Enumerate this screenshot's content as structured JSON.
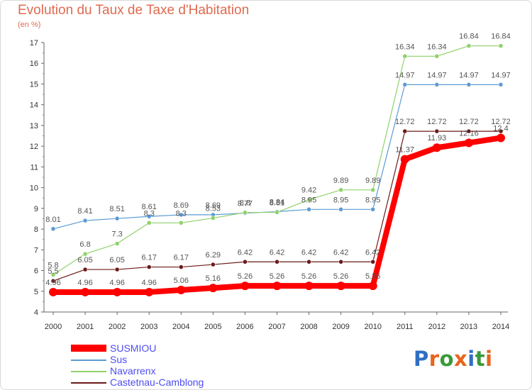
{
  "header": {
    "title": "Evolution du Taux de Taxe d'Habitation",
    "unit": "(en %)"
  },
  "chart_data": {
    "type": "line",
    "title": "Evolution du Taux de Taxe d'Habitation",
    "ylabel": "(en %)",
    "x": [
      "2000",
      "2001",
      "2002",
      "2003",
      "2004",
      "2005",
      "2006",
      "2007",
      "2008",
      "2009",
      "2010",
      "2011",
      "2012",
      "2013",
      "2014"
    ],
    "ylim": [
      4,
      17
    ],
    "yticks": [
      "4",
      "5",
      "6",
      "7",
      "8",
      "9",
      "10",
      "11",
      "12",
      "13",
      "14",
      "15",
      "16",
      "17"
    ],
    "grid": false,
    "legend_position": "bottom-left",
    "series": [
      {
        "name": "SUSMIOU",
        "color": "#ff0000",
        "values": [
          4.96,
          4.96,
          4.96,
          4.96,
          5.06,
          5.16,
          5.26,
          5.26,
          5.26,
          5.26,
          5.26,
          11.37,
          11.93,
          12.16,
          12.4
        ],
        "labels": [
          "4.96",
          "4.96",
          "4.96",
          "4.96",
          "5.06",
          "5.16",
          "5.26",
          "5.26",
          "5.26",
          "5.26",
          "5.26",
          "11.37",
          "11.93",
          "12.16",
          "12.4"
        ]
      },
      {
        "name": "Sus",
        "color": "#5b9bd5",
        "values": [
          8.01,
          8.41,
          8.51,
          8.61,
          8.69,
          8.69,
          8.77,
          8.84,
          8.95,
          8.95,
          8.95,
          14.97,
          14.97,
          14.97,
          14.97
        ],
        "labels": [
          "8.01",
          "8.41",
          "8.51",
          "8.61",
          "8.69",
          "8.69",
          "8.77",
          "8.84",
          "8.95",
          "8.95",
          "8.95",
          "14.97",
          "14.97",
          "14.97",
          "14.97"
        ]
      },
      {
        "name": "Navarrenx",
        "color": "#8fd16a",
        "values": [
          5.8,
          6.8,
          7.3,
          8.3,
          8.3,
          8.53,
          8.8,
          8.81,
          9.42,
          9.89,
          9.89,
          16.34,
          16.34,
          16.84,
          16.84
        ],
        "labels": [
          "5.8",
          "6.8",
          "7.3",
          "8.3",
          "8.3",
          "8.53",
          "8.8",
          "8.81",
          "9.42",
          "9.89",
          "9.89",
          "16.34",
          "16.34",
          "16.84",
          "16.84"
        ]
      },
      {
        "name": "Castetnau-Camblong",
        "color": "#6b1a1a",
        "values": [
          5.5,
          6.05,
          6.05,
          6.17,
          6.17,
          6.29,
          6.42,
          6.42,
          6.42,
          6.42,
          6.42,
          12.72,
          12.72,
          12.72,
          12.72
        ],
        "labels": [
          "5.5",
          "6.05",
          "6.05",
          "6.17",
          "6.17",
          "6.29",
          "6.42",
          "6.42",
          "6.42",
          "6.42",
          "6.42",
          "12.72",
          "12.72",
          "12.72",
          "12.72"
        ]
      }
    ]
  },
  "legend": [
    {
      "label": "SUSMIOU",
      "color": "#ff0000"
    },
    {
      "label": "Sus",
      "color": "#5b9bd5"
    },
    {
      "label": "Navarrenx",
      "color": "#8fd16a"
    },
    {
      "label": "Castetnau-Camblong",
      "color": "#6b1a1a"
    }
  ],
  "logo": {
    "text": "Proxiti",
    "colors": [
      "#2f6fc4",
      "#e8641e",
      "#3a9a3a",
      "#e8641e",
      "#2f6fc4",
      "#3a9a3a",
      "#e8641e"
    ]
  }
}
